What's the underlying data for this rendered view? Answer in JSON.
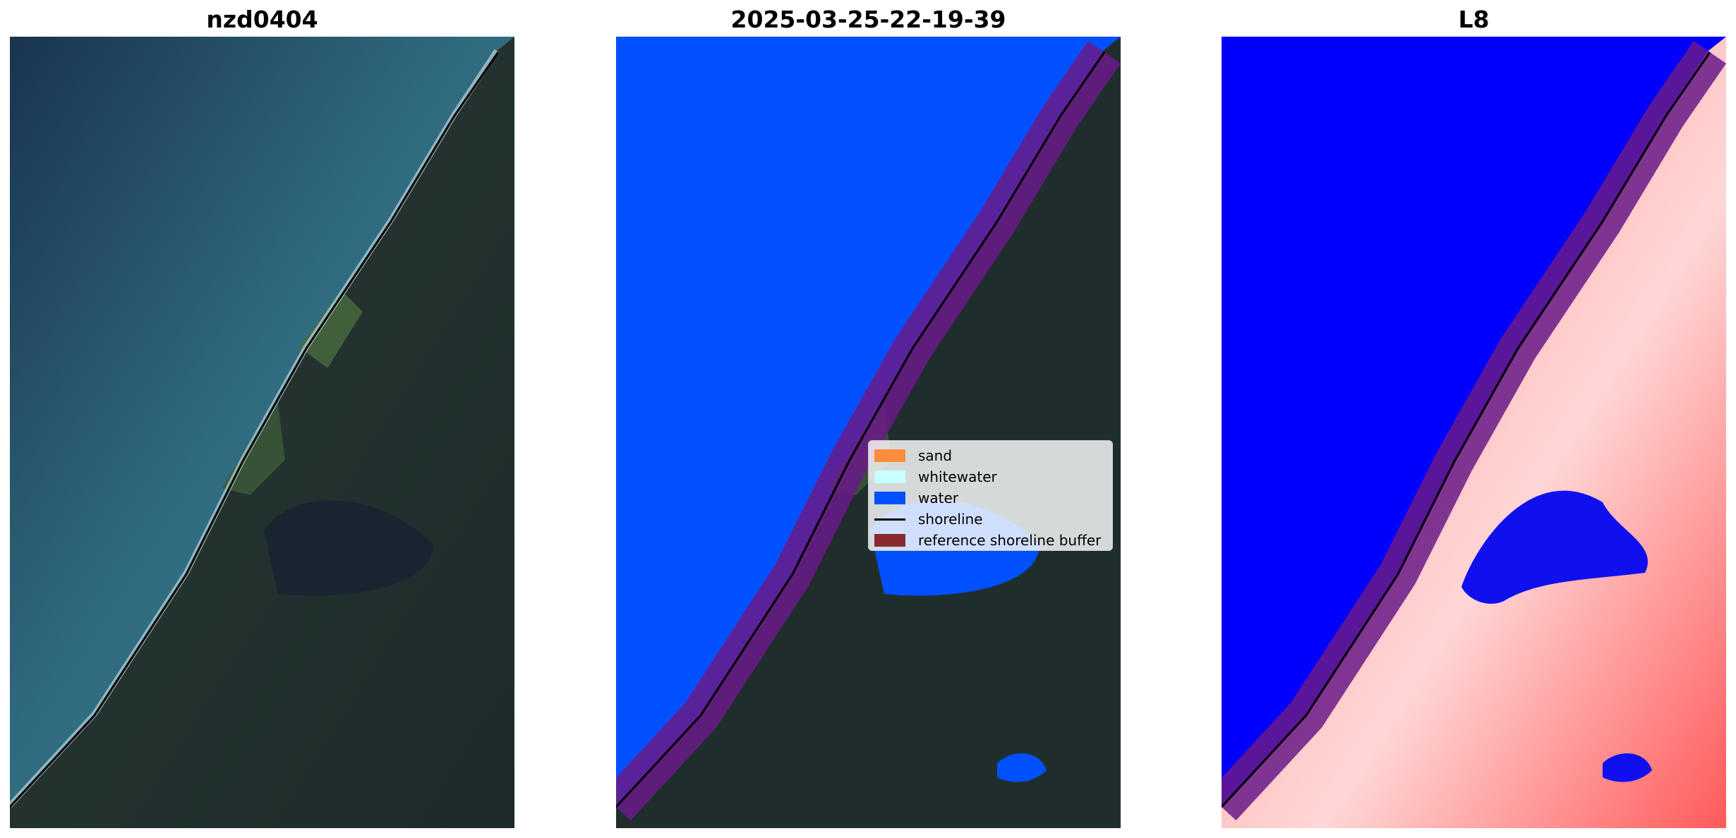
{
  "panels": [
    {
      "title": "nzd0404",
      "kind": "rgb"
    },
    {
      "title": "2025-03-25-22-19-39",
      "kind": "classified"
    },
    {
      "title": "L8",
      "kind": "index"
    }
  ],
  "legend": {
    "items": [
      {
        "label": "sand",
        "color": "#ff8c3c",
        "kind": "patch"
      },
      {
        "label": "whitewater",
        "color": "#c8ffff",
        "kind": "patch"
      },
      {
        "label": "water",
        "color": "#0050ff",
        "kind": "patch"
      },
      {
        "label": "shoreline",
        "color": "#000000",
        "kind": "line"
      },
      {
        "label": "reference shoreline buffer",
        "color": "#8b2a2e",
        "kind": "patch"
      }
    ]
  },
  "colors": {
    "ocean_dark": "#1d3a55",
    "ocean_teal": "#3f7d8c",
    "land_dark": "#1f2e2c",
    "land_green": "#3d5a3a",
    "classified_water": "#0050ff",
    "buffer": "#6a1a88",
    "index_water": "#0000ff",
    "index_land": "#ff6060"
  }
}
